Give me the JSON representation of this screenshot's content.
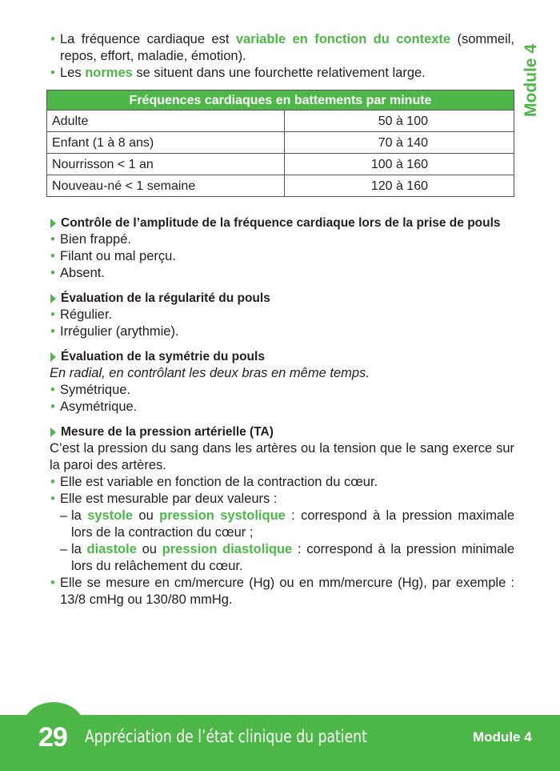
{
  "intro": {
    "b1_pre": "La fréquence cardiaque est ",
    "b1_hl": "variable en fonction du contexte",
    "b1_post": " (sommeil, repos, effort, maladie, émotion).",
    "b2_pre": "Les ",
    "b2_hl": "normes",
    "b2_post": " se situent dans une fourchette relativement large."
  },
  "table": {
    "header": "Fréquences cardiaques en battements par minute",
    "rows": [
      {
        "label": "Adulte",
        "value": "50 à 100"
      },
      {
        "label": "Enfant (1 à 8 ans)",
        "value": "70 à 140"
      },
      {
        "label": "Nourrisson < 1 an",
        "value": "100 à 160"
      },
      {
        "label": "Nouveau-né < 1 semaine",
        "value": "120 à 160"
      }
    ]
  },
  "s1": {
    "title": "Contrôle de l’amplitude de la fréquence cardiaque lors de la prise de pouls",
    "items": [
      "Bien frappé.",
      "Filant ou mal perçu.",
      "Absent."
    ]
  },
  "s2": {
    "title": "Évaluation de la régularité du pouls",
    "items": [
      "Régulier.",
      "Irrégulier (arythmie)."
    ]
  },
  "s3": {
    "title": "Évaluation de la symétrie du pouls",
    "note": "En radial, en contrôlant les deux bras en même temps.",
    "items": [
      "Symétrique.",
      "Asymétrique."
    ]
  },
  "s4": {
    "title": "Mesure de la pression artérielle (TA)",
    "para": "C’est la pression du sang dans les artères ou la tension que le sang exerce sur la paroi des artères.",
    "b1": "Elle est variable en fonction de la contraction du cœur.",
    "b2": "Elle est mesurable par deux valeurs :",
    "d1_pre": "la ",
    "d1_hl1": "systole",
    "d1_mid": " ou ",
    "d1_hl2": "pression systolique",
    "d1_post": " : correspond à la pression maximale lors de la contraction du cœur ;",
    "d2_pre": "la ",
    "d2_hl1": "diastole",
    "d2_mid": " ou ",
    "d2_hl2": "pression diastolique",
    "d2_post": " : correspond à la pression minimale lors du relâchement du cœur.",
    "b3": "Elle se mesure en cm/mercure (Hg) ou en mm/mercure (Hg), par exemple : 13/8 cmHg ou 130/80 mmHg."
  },
  "side_label": "Module 4",
  "footer": {
    "page": "29",
    "title": "Appréciation de l’état clinique du patient",
    "module": "Module 4"
  },
  "colors": {
    "accent": "#4db848",
    "text": "#231f20"
  }
}
